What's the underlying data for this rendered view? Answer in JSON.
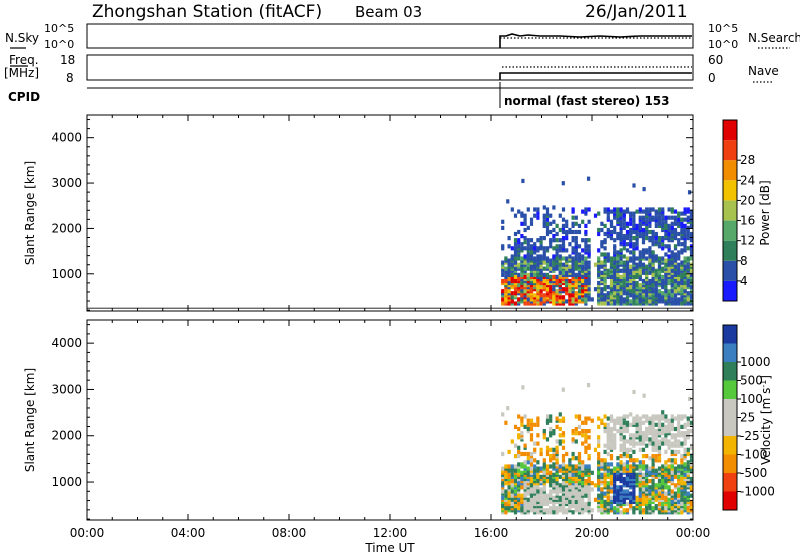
{
  "header": {
    "station": "Zhongshan Station (fitACF)",
    "beam": "Beam 03",
    "date": "26/Jan/2011"
  },
  "top_panels": {
    "nsky_label": "N.Sky",
    "nsky_ticks": [
      "10^5",
      "10^0"
    ],
    "nsearch_label": "N.Search",
    "nsearch_ticks": [
      "10^5",
      "10^0"
    ],
    "freq_label_1": "Freq.",
    "freq_label_2": "[MHz]",
    "freq_ticks": [
      "18",
      "8"
    ],
    "nave_label": "Nave",
    "nave_ticks": [
      "60",
      "0"
    ],
    "cpid_label": "CPID",
    "cpid_text": "normal (fast stereo) 153"
  },
  "colors": {
    "power_scale": [
      "#1a1aff",
      "#2a4fa8",
      "#2f7f5a",
      "#55a86a",
      "#a8c24f",
      "#f2c200",
      "#f28c00",
      "#f04010",
      "#e00000"
    ],
    "velocity_scale": [
      "#e00000",
      "#f04010",
      "#f28c00",
      "#f2b400",
      "#c8c8c0",
      "#c8c8c0",
      "#56c83c",
      "#2f7f5a",
      "#3a80c0",
      "#1a3aa0"
    ],
    "cpid_line": "#000000"
  },
  "chart_data": [
    {
      "type": "heatmap",
      "title": "",
      "xlabel": "",
      "ylabel": "Slant Range [km]",
      "xlim": [
        0,
        24
      ],
      "ylim": [
        180,
        4500
      ],
      "x_tick_labels": [],
      "y_ticks": [
        1000,
        2000,
        3000,
        4000
      ],
      "colorbar": {
        "label": "Power [dB]",
        "ticks": [
          "4",
          "8",
          "12",
          "16",
          "20",
          "24",
          "28"
        ]
      },
      "data_start_hour": 16.4,
      "regions": [
        {
          "x": [
            16.4,
            24.0
          ],
          "y": [
            400,
            1300
          ],
          "level": "low"
        },
        {
          "x": [
            16.4,
            19.5
          ],
          "y": [
            300,
            800
          ],
          "level": "high"
        },
        {
          "x": [
            17.0,
            24.0
          ],
          "y": [
            1300,
            2400
          ],
          "level": "low"
        }
      ]
    },
    {
      "type": "heatmap",
      "title": "",
      "xlabel": "Time UT",
      "ylabel": "Slant Range [km]",
      "xlim": [
        0,
        24
      ],
      "ylim": [
        180,
        4500
      ],
      "x_tick_labels": [
        "00:00",
        "04:00",
        "08:00",
        "12:00",
        "16:00",
        "20:00",
        "00:00"
      ],
      "y_ticks": [
        1000,
        2000,
        3000,
        4000
      ],
      "colorbar": {
        "label": "Velocity [m s^-1]",
        "ticks": [
          "-1000",
          "-500",
          "-100",
          "-25",
          "25",
          "100",
          "500",
          "1000"
        ]
      },
      "data_start_hour": 16.4,
      "regions": [
        {
          "x": [
            16.4,
            24.0
          ],
          "y": [
            300,
            1300
          ],
          "level": "mixed"
        },
        {
          "x": [
            17.0,
            24.0
          ],
          "y": [
            1300,
            2400
          ],
          "level": "mixed"
        }
      ]
    }
  ]
}
